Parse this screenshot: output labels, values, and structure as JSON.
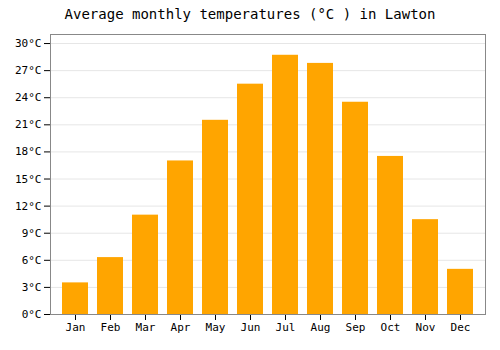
{
  "chart_data": {
    "type": "bar",
    "title": "Average monthly temperatures (°C ) in Lawton",
    "categories": [
      "Jan",
      "Feb",
      "Mar",
      "Apr",
      "May",
      "Jun",
      "Jul",
      "Aug",
      "Sep",
      "Oct",
      "Nov",
      "Dec"
    ],
    "values": [
      3.5,
      6.3,
      11.0,
      17.0,
      21.5,
      25.5,
      28.7,
      27.8,
      23.5,
      17.5,
      10.5,
      5.0
    ],
    "color": "#FFA500",
    "ylim": [
      0,
      31
    ],
    "yticks": [
      {
        "value": 0,
        "label": "0°C"
      },
      {
        "value": 3,
        "label": "3°C"
      },
      {
        "value": 6,
        "label": "6°C"
      },
      {
        "value": 9,
        "label": "9°C"
      },
      {
        "value": 12,
        "label": "12°C"
      },
      {
        "value": 15,
        "label": "15°C"
      },
      {
        "value": 18,
        "label": "18°C"
      },
      {
        "value": 21,
        "label": "21°C"
      },
      {
        "value": 24,
        "label": "24°C"
      },
      {
        "value": 27,
        "label": "27°C"
      },
      {
        "value": 30,
        "label": "30°C"
      }
    ],
    "grid": true
  }
}
